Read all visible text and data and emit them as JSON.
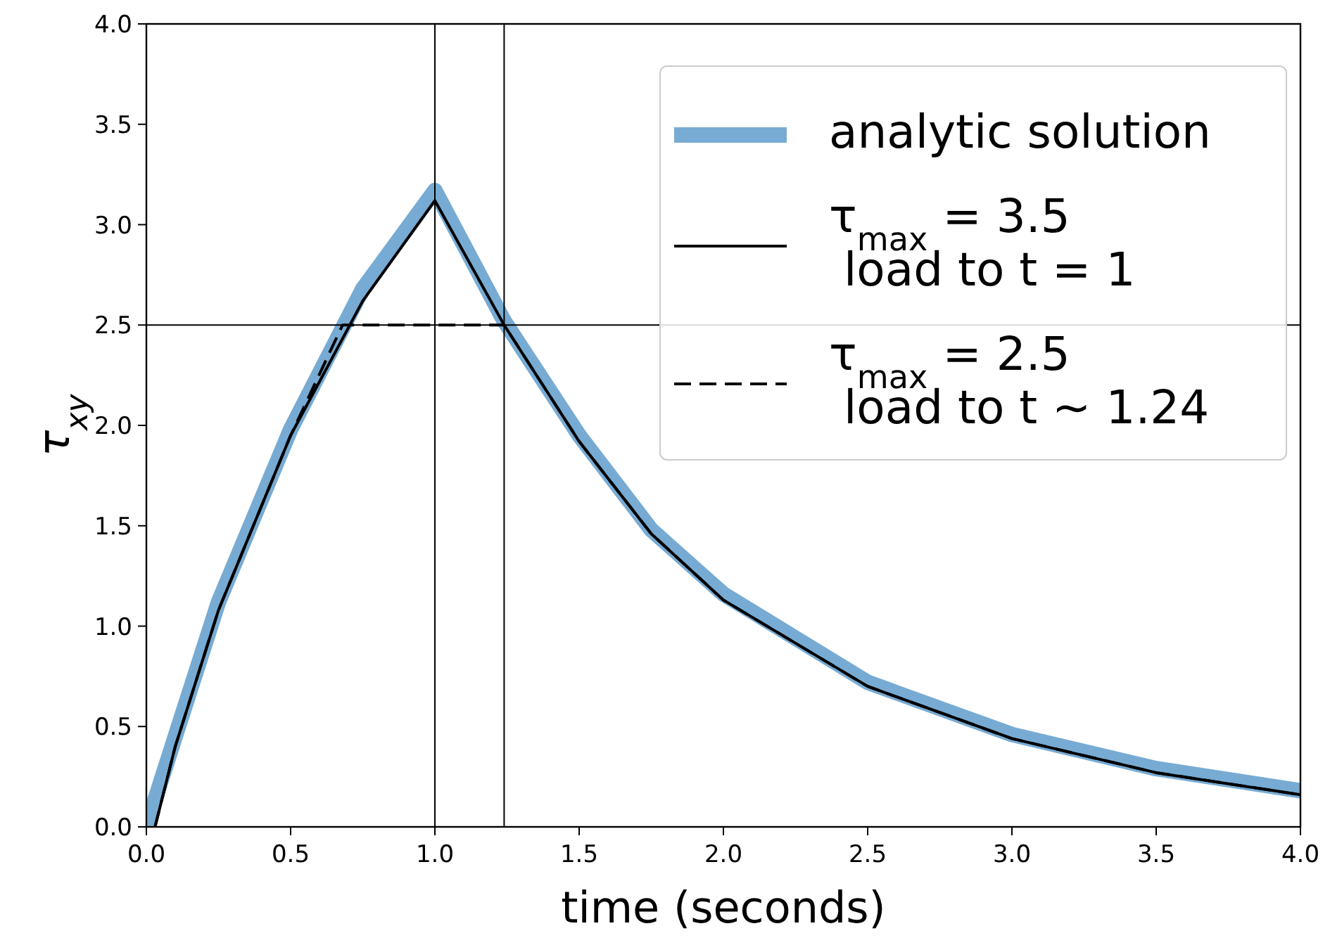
{
  "chart_data": {
    "type": "line",
    "xlabel": "time (seconds)",
    "ylabel": "τ$_{xy}$",
    "xlim": [
      0,
      4
    ],
    "ylim": [
      0,
      4
    ],
    "xticks": [
      {
        "value": 0,
        "label": "0.0"
      },
      0.5,
      {
        "value": 1,
        "label": "1.0"
      },
      1.5,
      {
        "value": 2,
        "label": "2.0"
      },
      2.5,
      {
        "value": 3,
        "label": "3.0"
      },
      3.5,
      {
        "value": 4,
        "label": "4.0"
      }
    ],
    "yticks": [
      {
        "value": 0,
        "label": "0.0"
      },
      0.5,
      {
        "value": 1,
        "label": "1.0"
      },
      1.5,
      {
        "value": 2,
        "label": "2.0"
      },
      2.5,
      {
        "value": 3,
        "label": "3.0"
      },
      3.5,
      {
        "value": 4,
        "label": "4.0"
      }
    ],
    "series": [
      {
        "name": "analytic solution",
        "color": "#77abd3",
        "line_style": "solid",
        "x": [
          0,
          0.1,
          0.25,
          0.5,
          0.75,
          1,
          1.24,
          1.5,
          1.75,
          2,
          2.5,
          3,
          3.5,
          4
        ],
        "values": [
          0,
          0.45,
          1.12,
          1.98,
          2.68,
          3.17,
          2.52,
          1.95,
          1.48,
          1.16,
          0.72,
          0.46,
          0.29,
          0.18
        ]
      },
      {
        "name": "τ$_{max}$ = 3.5\n load to t = 1",
        "color": "#000000",
        "line_style": "solid",
        "x": [
          0.03,
          0.1,
          0.25,
          0.5,
          0.75,
          1,
          1.24,
          1.5,
          1.75,
          2,
          2.5,
          3,
          3.5,
          4
        ],
        "values": [
          0,
          0.4,
          1.08,
          1.95,
          2.62,
          3.12,
          2.5,
          1.92,
          1.46,
          1.13,
          0.7,
          0.44,
          0.27,
          0.16
        ]
      },
      {
        "name": "τ$_{max}$ = 2.5\n load to t ~ 1.24",
        "color": "#000000",
        "line_style": "dashed",
        "x": [
          0.03,
          0.1,
          0.25,
          0.5,
          0.68,
          1,
          1.24,
          1.5,
          1.75,
          2,
          2.5,
          3,
          3.5,
          4
        ],
        "values": [
          0,
          0.4,
          1.08,
          1.95,
          2.5,
          2.5,
          2.5,
          1.92,
          1.46,
          1.13,
          0.7,
          0.44,
          0.27,
          0.16
        ]
      }
    ],
    "ref_lines": [
      {
        "axis": "x",
        "value": 1,
        "color": "#000000"
      },
      {
        "axis": "x",
        "value": 1.24,
        "color": "#000000"
      },
      {
        "axis": "y",
        "value": 2.5,
        "color": "#000000"
      }
    ],
    "legend": "top right",
    "grid": false,
    "marker": "none"
  }
}
